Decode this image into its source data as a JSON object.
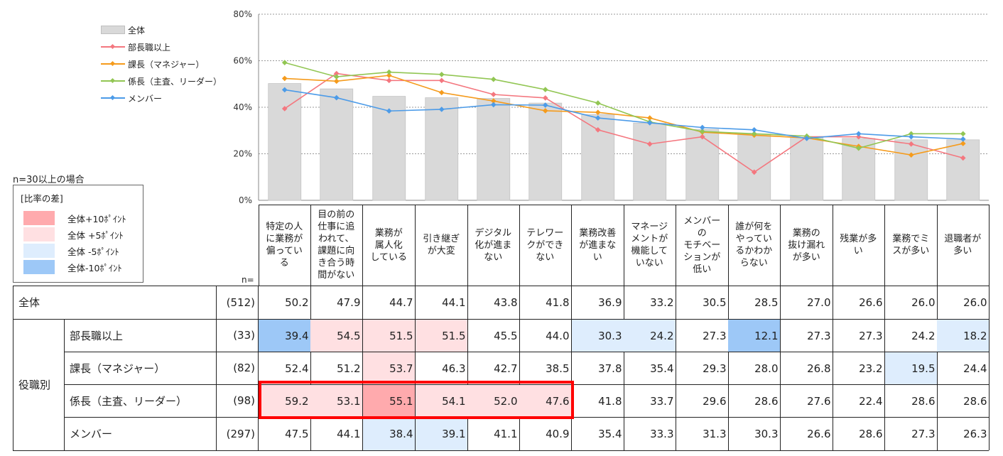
{
  "chart_data": {
    "type": "bar",
    "categories": [
      "特定の人に業務が偏っている",
      "目の前の仕事に追われて、課題に向き合う時間がない",
      "業務が属人化している",
      "引き継ぎが大変",
      "デジタル化が進まない",
      "テレワークができない",
      "業務改善が進まない",
      "マネージメントが機能していない",
      "メンバーのモチベーションが低い",
      "誰が何をやっているかわからない",
      "業務の抜け漏れが多い",
      "残業が多い",
      "業務でミスが多い",
      "退職者が多い"
    ],
    "header_lines": [
      [
        "特定の人",
        "に業務が",
        "偏ってい",
        "る"
      ],
      [
        "目の前の",
        "仕事に追",
        "われて、",
        "課題に向",
        "き合う時",
        "間がない"
      ],
      [
        "業務が",
        "属人化",
        "している"
      ],
      [
        "引き継ぎ",
        "が大変"
      ],
      [
        "デジタル",
        "化が進ま",
        "ない"
      ],
      [
        "テレワー",
        "クができ",
        "ない"
      ],
      [
        "業務改善",
        "が進まな",
        "い"
      ],
      [
        "マネージ",
        "メントが",
        "機能して",
        "いない"
      ],
      [
        "メンバー",
        "の",
        "モチベー",
        "ションが",
        "低い"
      ],
      [
        "誰が何を",
        "やってい",
        "るかわか",
        "らない"
      ],
      [
        "業務の",
        "抜け漏れ",
        "が多い"
      ],
      [
        "残業が多",
        "い"
      ],
      [
        "業務でミ",
        "スが多い"
      ],
      [
        "退職者が",
        "多い"
      ]
    ],
    "ylim": [
      0,
      80
    ],
    "yticks": [
      "0%",
      "20%",
      "40%",
      "60%",
      "80%"
    ],
    "series": [
      {
        "name": "全体",
        "kind": "bar",
        "color": "#d9d9d9",
        "values": [
          50.2,
          47.9,
          44.7,
          44.1,
          43.8,
          41.8,
          36.9,
          33.2,
          30.5,
          28.5,
          27.0,
          26.6,
          26.0,
          26.0
        ]
      },
      {
        "name": "部長職以上",
        "kind": "line",
        "color": "#f4777f",
        "values": [
          39.4,
          54.5,
          51.5,
          51.5,
          45.5,
          44.0,
          30.3,
          24.2,
          27.3,
          12.1,
          27.3,
          27.3,
          24.2,
          18.2
        ]
      },
      {
        "name": "課長（マネジャー）",
        "kind": "line",
        "color": "#f59b1c",
        "values": [
          52.4,
          51.2,
          53.7,
          46.3,
          42.7,
          38.5,
          37.8,
          35.4,
          29.3,
          28.0,
          26.8,
          23.2,
          19.5,
          24.4
        ]
      },
      {
        "name": "係長（主査、リーダー）",
        "kind": "line",
        "color": "#92c653",
        "values": [
          59.2,
          53.1,
          55.1,
          54.1,
          52.0,
          47.6,
          41.8,
          33.7,
          29.6,
          28.6,
          27.6,
          22.4,
          28.6,
          28.6
        ]
      },
      {
        "name": "メンバー",
        "kind": "line",
        "color": "#4c9be8",
        "values": [
          47.5,
          44.1,
          38.4,
          39.1,
          41.1,
          40.9,
          35.4,
          33.3,
          31.3,
          30.3,
          26.6,
          28.6,
          27.3,
          26.3
        ]
      }
    ]
  },
  "legend_note": {
    "n_condition": "n=30以上の場合",
    "title": "[比率の差]",
    "items": [
      {
        "label": "全体+10ﾎﾟｲﾝﾄ",
        "color": "#ffaaad"
      },
      {
        "label": "全体 +5ﾎﾟｲﾝﾄ",
        "color": "#ffe0e2"
      },
      {
        "label": "全体 -5ﾎﾟｲﾝﾄ",
        "color": "#deedfd"
      },
      {
        "label": "全体-10ﾎﾟｲﾝﾄ",
        "color": "#9dc8f7"
      }
    ]
  },
  "table": {
    "n_label": "n=",
    "group_label": "役職別",
    "rows": [
      {
        "label": "全体",
        "n": "(512)",
        "values": [
          "50.2",
          "47.9",
          "44.7",
          "44.1",
          "43.8",
          "41.8",
          "36.9",
          "33.2",
          "30.5",
          "28.5",
          "27.0",
          "26.6",
          "26.0",
          "26.0"
        ],
        "shade": [
          0,
          0,
          0,
          0,
          0,
          0,
          0,
          0,
          0,
          0,
          0,
          0,
          0,
          0
        ]
      },
      {
        "label": "部長職以上",
        "n": "(33)",
        "values": [
          "39.4",
          "54.5",
          "51.5",
          "51.5",
          "45.5",
          "44.0",
          "30.3",
          "24.2",
          "27.3",
          "12.1",
          "27.3",
          "27.3",
          "24.2",
          "18.2"
        ],
        "shade": [
          -2,
          1,
          1,
          1,
          0,
          0,
          -1,
          -1,
          0,
          -2,
          0,
          0,
          0,
          -1
        ]
      },
      {
        "label": "課長（マネジャー）",
        "n": "(82)",
        "values": [
          "52.4",
          "51.2",
          "53.7",
          "46.3",
          "42.7",
          "38.5",
          "37.8",
          "35.4",
          "29.3",
          "28.0",
          "26.8",
          "23.2",
          "19.5",
          "24.4"
        ],
        "shade": [
          0,
          0,
          1,
          0,
          0,
          0,
          0,
          0,
          0,
          0,
          0,
          0,
          -1,
          0
        ]
      },
      {
        "label": "係長（主査、リーダー）",
        "n": "(98)",
        "values": [
          "59.2",
          "53.1",
          "55.1",
          "54.1",
          "52.0",
          "47.6",
          "41.8",
          "33.7",
          "29.6",
          "28.6",
          "27.6",
          "22.4",
          "28.6",
          "28.6"
        ],
        "shade": [
          1,
          1,
          2,
          1,
          1,
          1,
          0,
          0,
          0,
          0,
          0,
          0,
          0,
          0
        ]
      },
      {
        "label": "メンバー",
        "n": "(297)",
        "values": [
          "47.5",
          "44.1",
          "38.4",
          "39.1",
          "41.1",
          "40.9",
          "35.4",
          "33.3",
          "31.3",
          "30.3",
          "26.6",
          "28.6",
          "27.3",
          "26.3"
        ],
        "shade": [
          0,
          0,
          -1,
          -1,
          0,
          0,
          0,
          0,
          0,
          0,
          0,
          0,
          0,
          0
        ]
      }
    ]
  }
}
